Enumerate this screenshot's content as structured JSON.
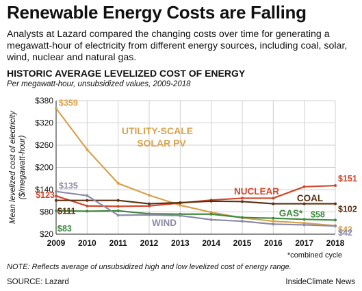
{
  "header": {
    "title": "Renewable Energy Costs are Falling",
    "intro": "Analysts at Lazard compared the changing costs over time for generating a megawatt-hour of electricity from different energy sources, including coal, solar, wind, nuclear and natural gas."
  },
  "footer": {
    "note": "NOTE: Reflects average of unsubsidized high and low levelized cost of energy range.",
    "source": "SOURCE: Lazard",
    "credit": "InsideClimate News"
  },
  "chart_data": {
    "type": "line",
    "title": "HISTORIC AVERAGE LEVELIZED COST OF ENERGY",
    "subtitle": "Per megawatt-hour, unsubsidized values, 2009-2018",
    "ylabel": "Mean levelized cost of electricity ($/megawatt-hour)",
    "xlabel": "",
    "x": [
      2009,
      2010,
      2011,
      2012,
      2013,
      2014,
      2015,
      2016,
      2017,
      2018
    ],
    "ylim": [
      20,
      380
    ],
    "yticks": [
      "$20",
      "$80",
      "$140",
      "$200",
      "$260",
      "$320",
      "$380"
    ],
    "ytick_values": [
      20,
      80,
      140,
      200,
      260,
      320,
      380
    ],
    "grid": true,
    "footnote": "*combined cycle",
    "series": [
      {
        "name": "UTILITY-SCALE SOLAR PV",
        "color": "#d9a24a",
        "values": [
          359,
          248,
          157,
          125,
          98,
          79,
          64,
          55,
          50,
          43
        ],
        "start_label": "$359",
        "end_label": "$43"
      },
      {
        "name": "NUCLEAR",
        "color": "#d2462a",
        "values": [
          123,
          96,
          95,
          96,
          104,
          112,
          117,
          117,
          148,
          151
        ],
        "start_label": "$123",
        "end_label": "$151"
      },
      {
        "name": "COAL",
        "color": "#5a3010",
        "values": [
          111,
          111,
          111,
          102,
          105,
          109,
          108,
          102,
          102,
          102
        ],
        "start_label": "$111",
        "end_label": "$102"
      },
      {
        "name": "GAS*",
        "color": "#3f8a3f",
        "values": [
          83,
          82,
          83,
          75,
          74,
          74,
          65,
          63,
          60,
          58
        ],
        "start_label": "$83",
        "end_label": "$58"
      },
      {
        "name": "WIND",
        "color": "#8a8aa8",
        "values": [
          135,
          124,
          71,
          72,
          70,
          59,
          55,
          47,
          45,
          42
        ],
        "start_label": "$135",
        "end_label": "$42"
      }
    ]
  }
}
